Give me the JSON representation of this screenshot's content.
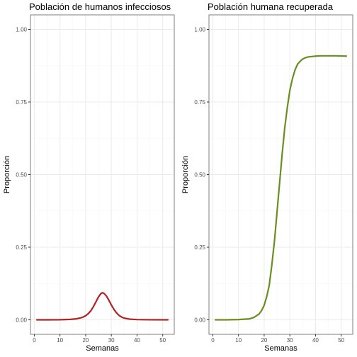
{
  "chart_data": [
    {
      "type": "line",
      "title": "Población de humanos infecciosos",
      "xlabel": "Semanas",
      "ylabel": "Proporción",
      "xlim": [
        -1.5,
        54.5
      ],
      "ylim": [
        -0.05,
        1.05
      ],
      "x_ticks": [
        0,
        10,
        20,
        30,
        40,
        50
      ],
      "y_ticks": [
        0.0,
        0.25,
        0.5,
        0.75,
        1.0
      ],
      "x_tick_labels": [
        "0",
        "10",
        "20",
        "30",
        "40",
        "50"
      ],
      "y_tick_labels": [
        "0.00",
        "0.25",
        "0.50",
        "0.75",
        "1.00"
      ],
      "grid": true,
      "series": [
        {
          "color": "#b22222",
          "x": [
            1,
            5,
            10,
            14,
            16,
            18,
            19,
            20,
            21,
            22,
            23,
            24,
            25,
            26,
            26.5,
            27,
            28,
            29,
            30,
            31,
            32,
            33,
            34,
            35,
            37,
            40,
            45,
            52
          ],
          "y": [
            0.0,
            0.0,
            0.0003,
            0.0015,
            0.003,
            0.0065,
            0.0095,
            0.014,
            0.021,
            0.031,
            0.045,
            0.062,
            0.079,
            0.091,
            0.093,
            0.092,
            0.083,
            0.068,
            0.051,
            0.036,
            0.024,
            0.015,
            0.0095,
            0.006,
            0.0025,
            0.0008,
            0.0001,
            0.0
          ]
        }
      ]
    },
    {
      "type": "line",
      "title": "Población humana recuperada",
      "xlabel": "Semanas",
      "ylabel": "Proporción",
      "xlim": [
        -1.5,
        54.5
      ],
      "ylim": [
        -0.05,
        1.05
      ],
      "x_ticks": [
        0,
        10,
        20,
        30,
        40,
        50
      ],
      "y_ticks": [
        0.0,
        0.25,
        0.5,
        0.75,
        1.0
      ],
      "x_tick_labels": [
        "0",
        "10",
        "20",
        "30",
        "40",
        "50"
      ],
      "y_tick_labels": [
        "0.00",
        "0.25",
        "0.50",
        "0.75",
        "1.00"
      ],
      "grid": true,
      "series": [
        {
          "color": "#6b8e23",
          "x": [
            1,
            5,
            10,
            14,
            16,
            18,
            19,
            20,
            21,
            22,
            23,
            24,
            25,
            26,
            27,
            28,
            29,
            30,
            31,
            32,
            33,
            34,
            35,
            36,
            37,
            38,
            40,
            42,
            45,
            48,
            52
          ],
          "y": [
            0.0,
            0.0,
            0.001,
            0.003,
            0.008,
            0.02,
            0.032,
            0.05,
            0.08,
            0.12,
            0.19,
            0.27,
            0.37,
            0.47,
            0.57,
            0.66,
            0.73,
            0.79,
            0.83,
            0.86,
            0.88,
            0.89,
            0.898,
            0.902,
            0.905,
            0.906,
            0.908,
            0.909,
            0.909,
            0.909,
            0.908
          ]
        }
      ]
    }
  ]
}
